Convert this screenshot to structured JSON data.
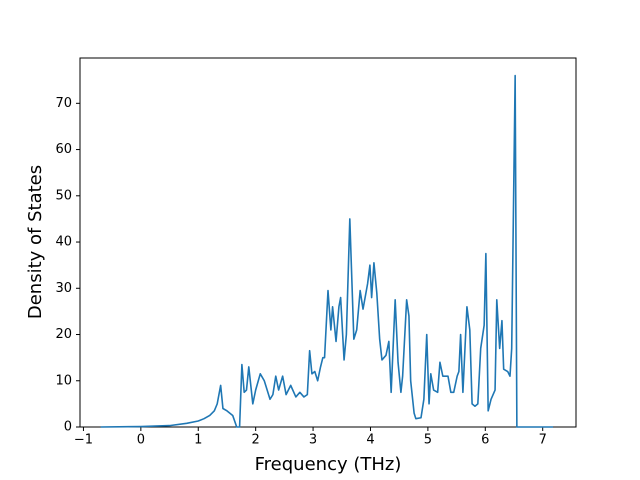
{
  "chart_data": {
    "type": "line",
    "xlabel": "Frequency (THz)",
    "ylabel": "Density of States",
    "color": "#1f77b4",
    "x": [
      -0.7,
      0,
      0.5,
      0.8,
      1.0,
      1.1,
      1.2,
      1.28,
      1.33,
      1.39,
      1.43,
      1.5,
      1.6,
      1.67,
      1.72,
      1.76,
      1.8,
      1.84,
      1.88,
      1.95,
      2.0,
      2.08,
      2.15,
      2.25,
      2.3,
      2.35,
      2.4,
      2.47,
      2.53,
      2.61,
      2.7,
      2.77,
      2.84,
      2.9,
      2.94,
      2.98,
      3.03,
      3.08,
      3.13,
      3.17,
      3.2,
      3.26,
      3.31,
      3.34,
      3.4,
      3.45,
      3.48,
      3.54,
      3.58,
      3.64,
      3.71,
      3.76,
      3.82,
      3.87,
      3.95,
      3.99,
      4.02,
      4.06,
      4.11,
      4.16,
      4.2,
      4.27,
      4.32,
      4.36,
      4.43,
      4.48,
      4.53,
      4.56,
      4.63,
      4.67,
      4.7,
      4.76,
      4.79,
      4.88,
      4.93,
      4.98,
      5.02,
      5.05,
      5.1,
      5.17,
      5.21,
      5.26,
      5.35,
      5.4,
      5.45,
      5.51,
      5.54,
      5.57,
      5.61,
      5.68,
      5.73,
      5.77,
      5.82,
      5.87,
      5.92,
      5.98,
      6.01,
      6.05,
      6.1,
      6.17,
      6.2,
      6.25,
      6.29,
      6.32,
      6.39,
      6.43,
      6.46,
      6.52,
      6.55,
      7.18
    ],
    "y": [
      0,
      0.1,
      0.3,
      0.8,
      1.3,
      1.8,
      2.5,
      3.5,
      5,
      9,
      4,
      3.5,
      2.5,
      0,
      0,
      13.5,
      7.5,
      8,
      13,
      5,
      8,
      11.5,
      10,
      6,
      7,
      11,
      8,
      11,
      7,
      9,
      6.5,
      7.5,
      6.5,
      7,
      16.5,
      11.5,
      12,
      10,
      13,
      15,
      15,
      29.5,
      21,
      26,
      18.5,
      26,
      28,
      14.5,
      20,
      45,
      19,
      21,
      29.5,
      25.5,
      31,
      35,
      28,
      35.5,
      29,
      19,
      14.5,
      15.5,
      18.5,
      7.5,
      27.5,
      14,
      7.5,
      11,
      27.5,
      24,
      10,
      3,
      1.8,
      2,
      6,
      20,
      5,
      11.5,
      8,
      7.5,
      14,
      11,
      11,
      7.5,
      7.5,
      11,
      12,
      20,
      7.5,
      26,
      21,
      5,
      4.5,
      5,
      17,
      22,
      37.5,
      3.5,
      6,
      8,
      27.5,
      17,
      23,
      12.5,
      12,
      11,
      17,
      76,
      0,
      0
    ],
    "xlim": [
      -1.06,
      7.58
    ],
    "ylim": [
      0,
      79.8
    ],
    "xticks": [
      {
        "value": -1,
        "label": "−1"
      },
      0,
      1,
      2,
      3,
      4,
      5,
      6,
      7
    ],
    "yticks": [
      0,
      10,
      20,
      30,
      40,
      50,
      60,
      70
    ]
  }
}
